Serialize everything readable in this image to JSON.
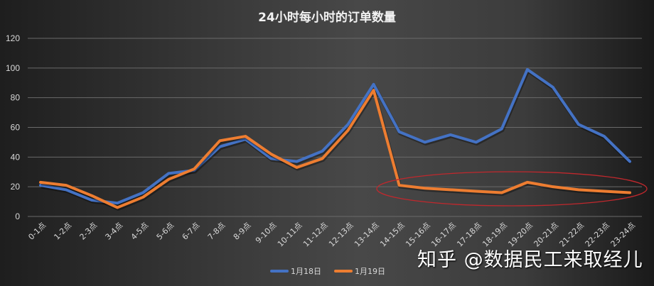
{
  "chart_data": {
    "type": "line",
    "title": "24小时每小时的订单数量",
    "xlabel": "",
    "ylabel": "",
    "ylim": [
      0,
      120
    ],
    "yticks": [
      0,
      20,
      40,
      60,
      80,
      100,
      120
    ],
    "grid": true,
    "legend_position": "bottom",
    "categories": [
      "0-1点",
      "1-2点",
      "2-3点",
      "3-4点",
      "4-5点",
      "5-6点",
      "6-7点",
      "7-8点",
      "8-9点",
      "9-10点",
      "10-11点",
      "11-12点",
      "12-13点",
      "13-14点",
      "14-15点",
      "15-16点",
      "16-17点",
      "17-18点",
      "18-19点",
      "19-20点",
      "20-21点",
      "21-22点",
      "22-23点",
      "23-24点"
    ],
    "series": [
      {
        "name": "1月18日",
        "color": "#4472c4",
        "values": [
          21,
          18,
          11,
          9,
          16,
          29,
          31,
          47,
          52,
          39,
          37,
          44,
          62,
          89,
          57,
          50,
          55,
          50,
          59,
          99,
          87,
          62,
          54,
          37
        ]
      },
      {
        "name": "1月19日",
        "color": "#ed7d31",
        "values": [
          23,
          21,
          14,
          6,
          13,
          25,
          32,
          51,
          54,
          42,
          33,
          39,
          58,
          85,
          21,
          19,
          18,
          17,
          16,
          23,
          20,
          18,
          17,
          16
        ]
      }
    ],
    "annotations": [
      {
        "type": "ellipse",
        "color": "#c0282d",
        "description": "highlights 1月19日 from 14-15点 to 23-24点"
      }
    ]
  },
  "watermark": "知乎 @数据民工来取经儿"
}
